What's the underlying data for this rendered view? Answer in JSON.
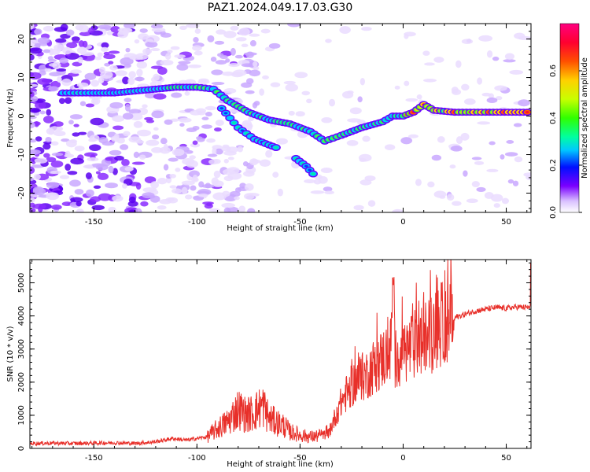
{
  "figure_title": "PAZ1.2024.049.17.03.G30",
  "chart_data": [
    {
      "type": "heatmap",
      "title": "",
      "xlabel": "Height of straight line (km)",
      "ylabel": "Frequency (Hz)",
      "xlim": [
        -181,
        62
      ],
      "ylim": [
        -25,
        24
      ],
      "xticks": [
        -150,
        -100,
        -50,
        0,
        50
      ],
      "yticks": [
        -20,
        -10,
        0,
        10,
        20
      ],
      "colorbar": {
        "label": "Normalized spectral amplitude",
        "range": [
          0,
          0.8
        ],
        "ticks": [
          0.0,
          0.2,
          0.4,
          0.6
        ],
        "colormap": "rainbow (white-violet-blue-cyan-green-yellow-orange-red-pink)"
      },
      "ridges": [
        {
          "x": [
            -165,
            -150,
            -140,
            -130,
            -120,
            -110,
            -100,
            -92,
            -85,
            -75,
            -65,
            -55,
            -45,
            -38,
            -30,
            -20,
            -10,
            -5,
            0,
            5,
            10,
            15,
            25,
            40,
            62
          ],
          "y": [
            6,
            6,
            6,
            6.5,
            7,
            7.5,
            7.5,
            7,
            4,
            1,
            -1,
            -2,
            -4,
            -6.5,
            -5,
            -3,
            -1.5,
            0,
            0,
            1,
            3,
            1.5,
            1,
            1,
            1
          ]
        },
        {
          "x": [
            -88,
            -80,
            -72,
            -65,
            -60
          ],
          "y": [
            2,
            -3,
            -6,
            -7.5,
            -8.5
          ]
        },
        {
          "x": [
            -52,
            -47,
            -42
          ],
          "y": [
            -11,
            -13,
            -16
          ]
        }
      ]
    },
    {
      "type": "line",
      "title": "",
      "xlabel": "Height of straight line (km)",
      "ylabel": "SNR (10 * v/v)",
      "xlim": [
        -181,
        62
      ],
      "ylim": [
        0,
        5700
      ],
      "xticks": [
        -150,
        -100,
        -50,
        0,
        50
      ],
      "yticks": [
        0,
        1000,
        2000,
        3000,
        4000,
        5000
      ],
      "color": "#e8302a",
      "x": [
        -181,
        -170,
        -160,
        -150,
        -140,
        -130,
        -120,
        -112,
        -105,
        -95,
        -90,
        -85,
        -80,
        -76,
        -72,
        -68,
        -65,
        -62,
        -58,
        -55,
        -52,
        -50,
        -45,
        -40,
        -36,
        -34,
        -30,
        -26,
        -22,
        -18,
        -14,
        -10,
        -6,
        -5,
        -4,
        0,
        5,
        10,
        15,
        20,
        25,
        30,
        35,
        40,
        45,
        50,
        55,
        62
      ],
      "y": [
        150,
        160,
        150,
        160,
        170,
        150,
        200,
        300,
        250,
        350,
        600,
        800,
        1200,
        1000,
        1100,
        1300,
        900,
        800,
        700,
        500,
        450,
        400,
        350,
        380,
        450,
        800,
        1400,
        1800,
        2100,
        2200,
        2500,
        2700,
        3000,
        5100,
        2700,
        2900,
        3100,
        3300,
        3500,
        3800,
        3950,
        4050,
        4150,
        4200,
        4250,
        4230,
        4270,
        4250
      ]
    }
  ]
}
